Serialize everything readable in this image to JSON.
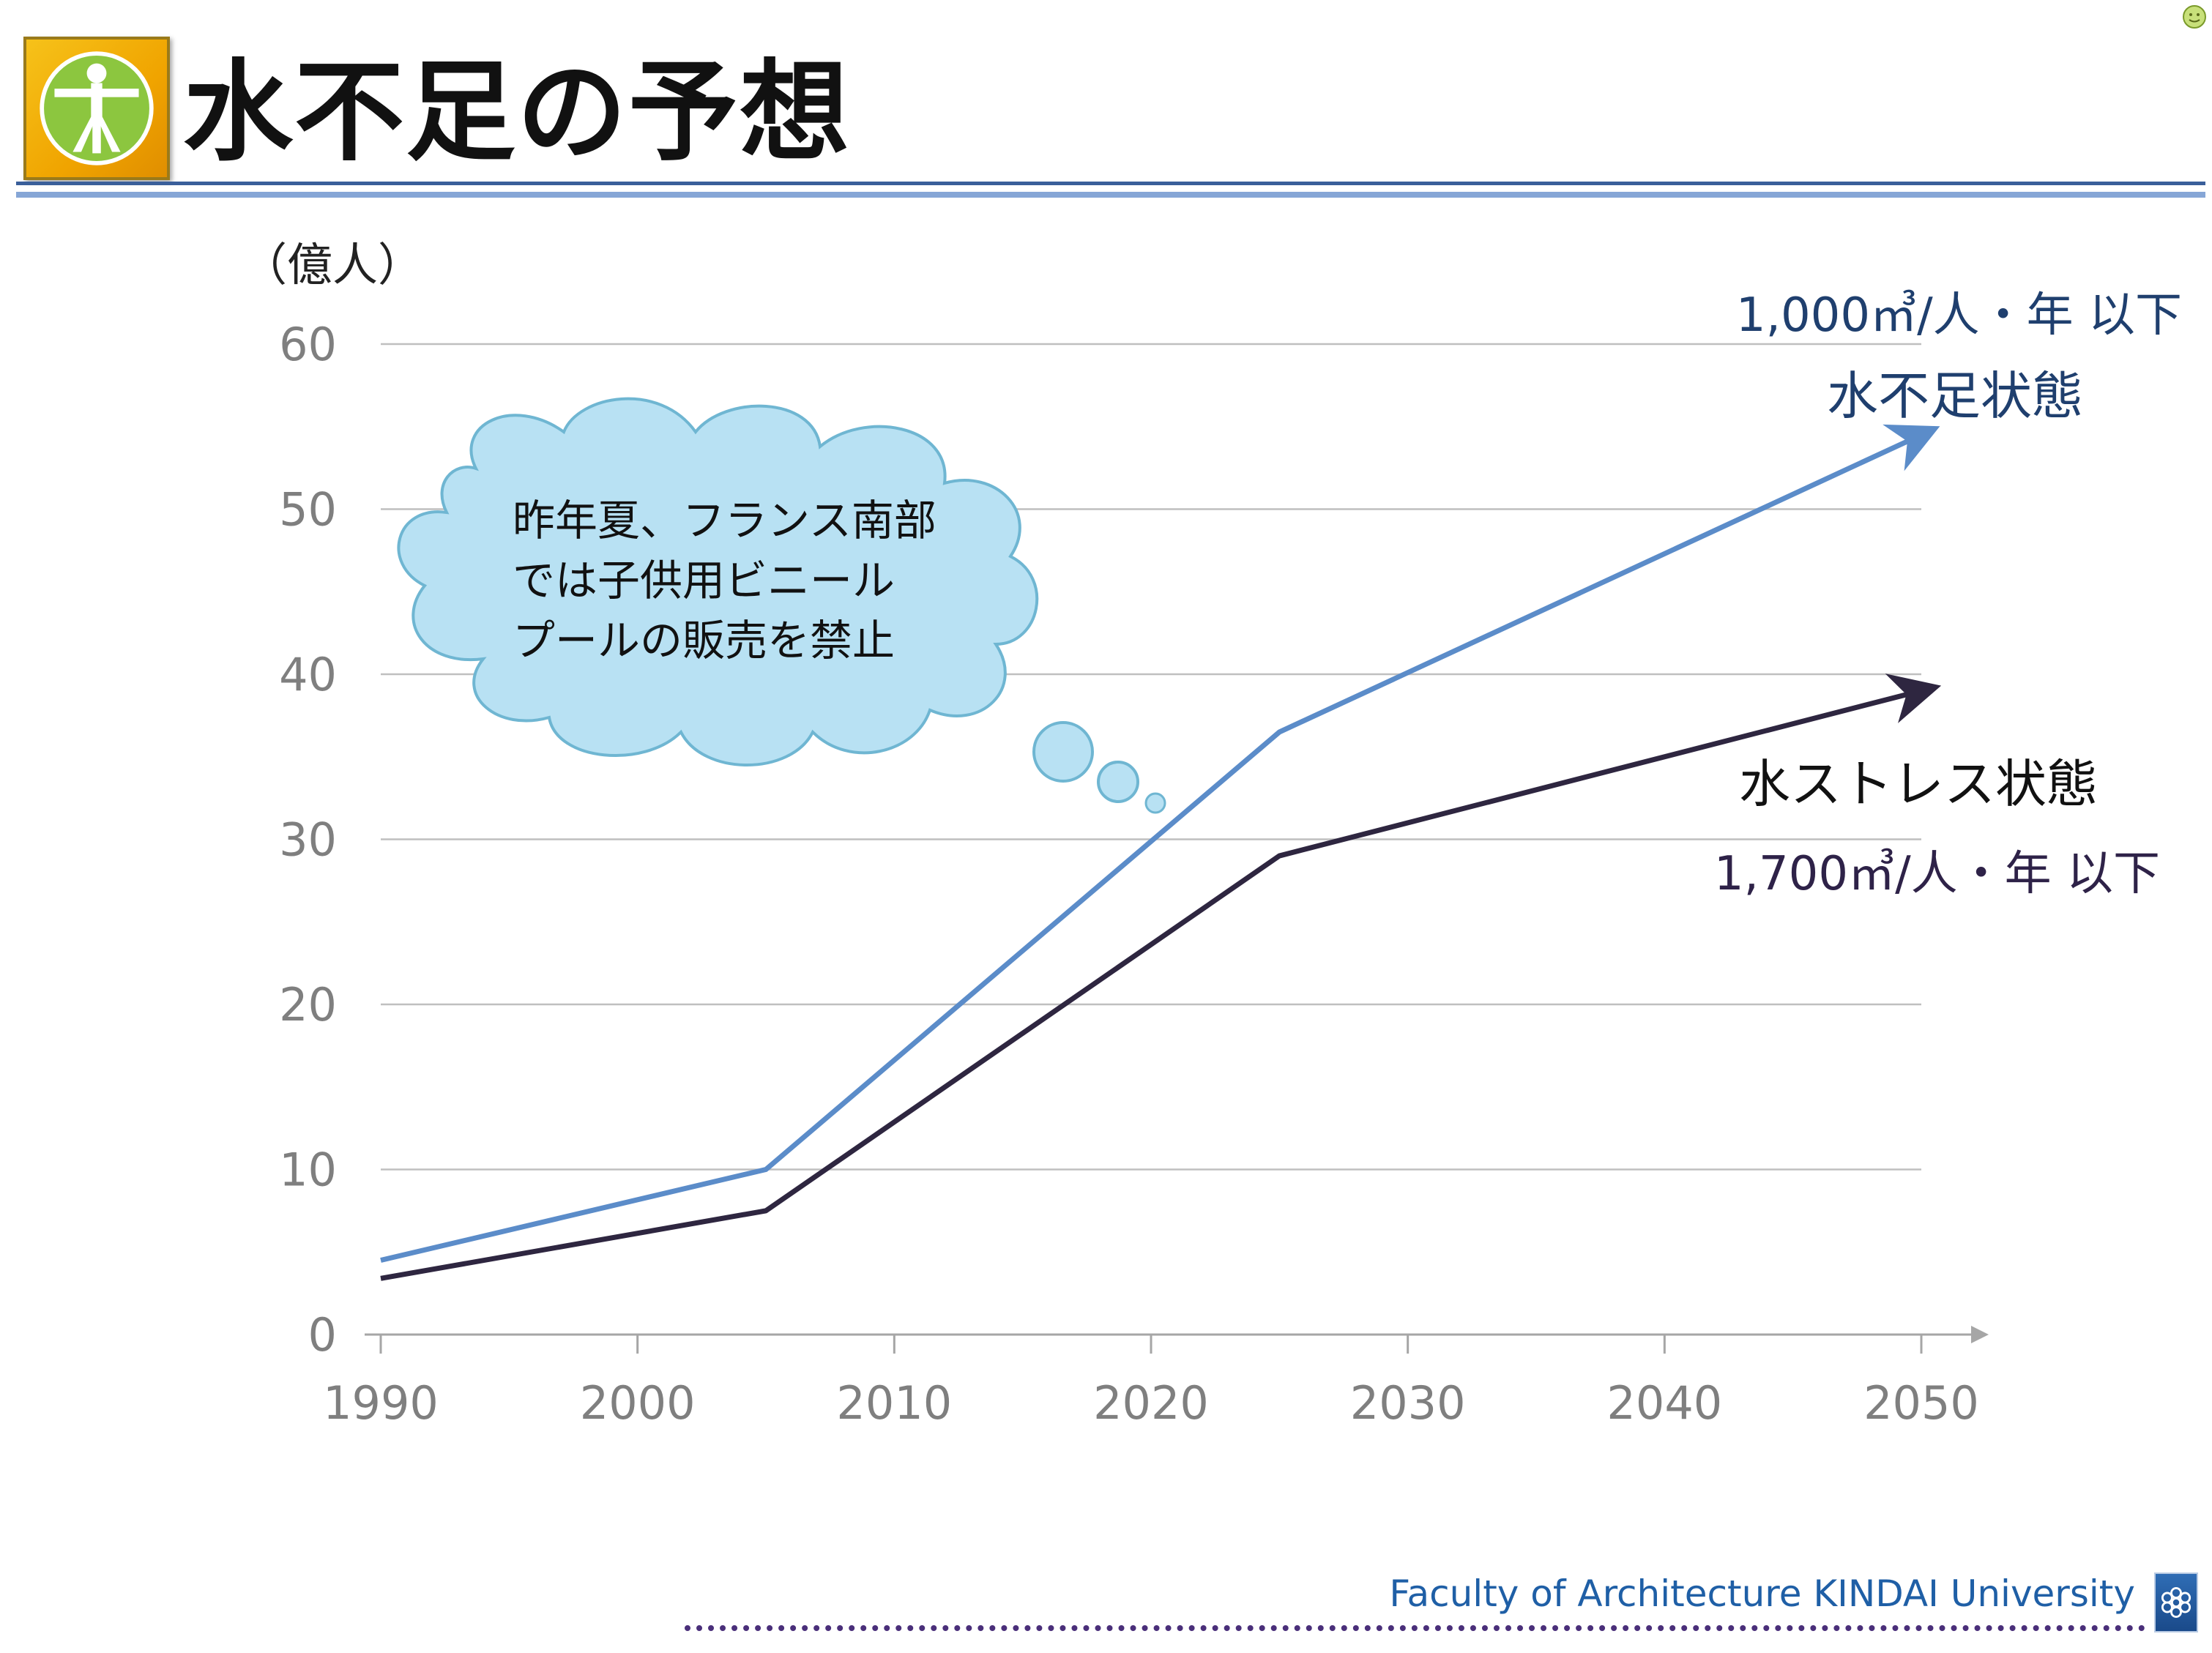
{
  "slide": {
    "title": "水不足の予想",
    "footer": "Faculty of Architecture  KINDAI University"
  },
  "callout": {
    "lines": [
      "昨年夏、フランス南部",
      "では子供用ビニール",
      "プールの販売を禁止"
    ]
  },
  "annotations": {
    "upper_line1": "1,000㎥/人・年 以下",
    "upper_line2": "水不足状態",
    "lower_line1": "水ストレス状態",
    "lower_line2": "1,700㎥/人・年 以下"
  },
  "colors": {
    "scarcity": "#5b8cc9",
    "stress": "#2e2640",
    "grid": "#bfbfbf",
    "tick_text": "#7f7f7f",
    "upper_text": "#1f3f6e",
    "lower_text": "#2e2248",
    "cloud_fill": "#b8e1f3",
    "cloud_stroke": "#6fb6d2"
  },
  "chart_data": {
    "type": "line",
    "ylabel": "（億人）",
    "xlim": [
      1990,
      2050
    ],
    "ylim": [
      0,
      60
    ],
    "xticks": [
      1990,
      2000,
      2010,
      2020,
      2030,
      2040,
      2050
    ],
    "yticks": [
      0,
      10,
      20,
      30,
      40,
      50,
      60
    ],
    "grid": true,
    "series": [
      {
        "key": "scarcity",
        "x": [
          1990,
          2005,
          2025,
          2050
        ],
        "y": [
          4.5,
          10,
          36.5,
          54.5
        ]
      },
      {
        "key": "stress",
        "x": [
          1990,
          2005,
          2025,
          2050
        ],
        "y": [
          3.4,
          7.5,
          29,
          39
        ]
      }
    ]
  }
}
